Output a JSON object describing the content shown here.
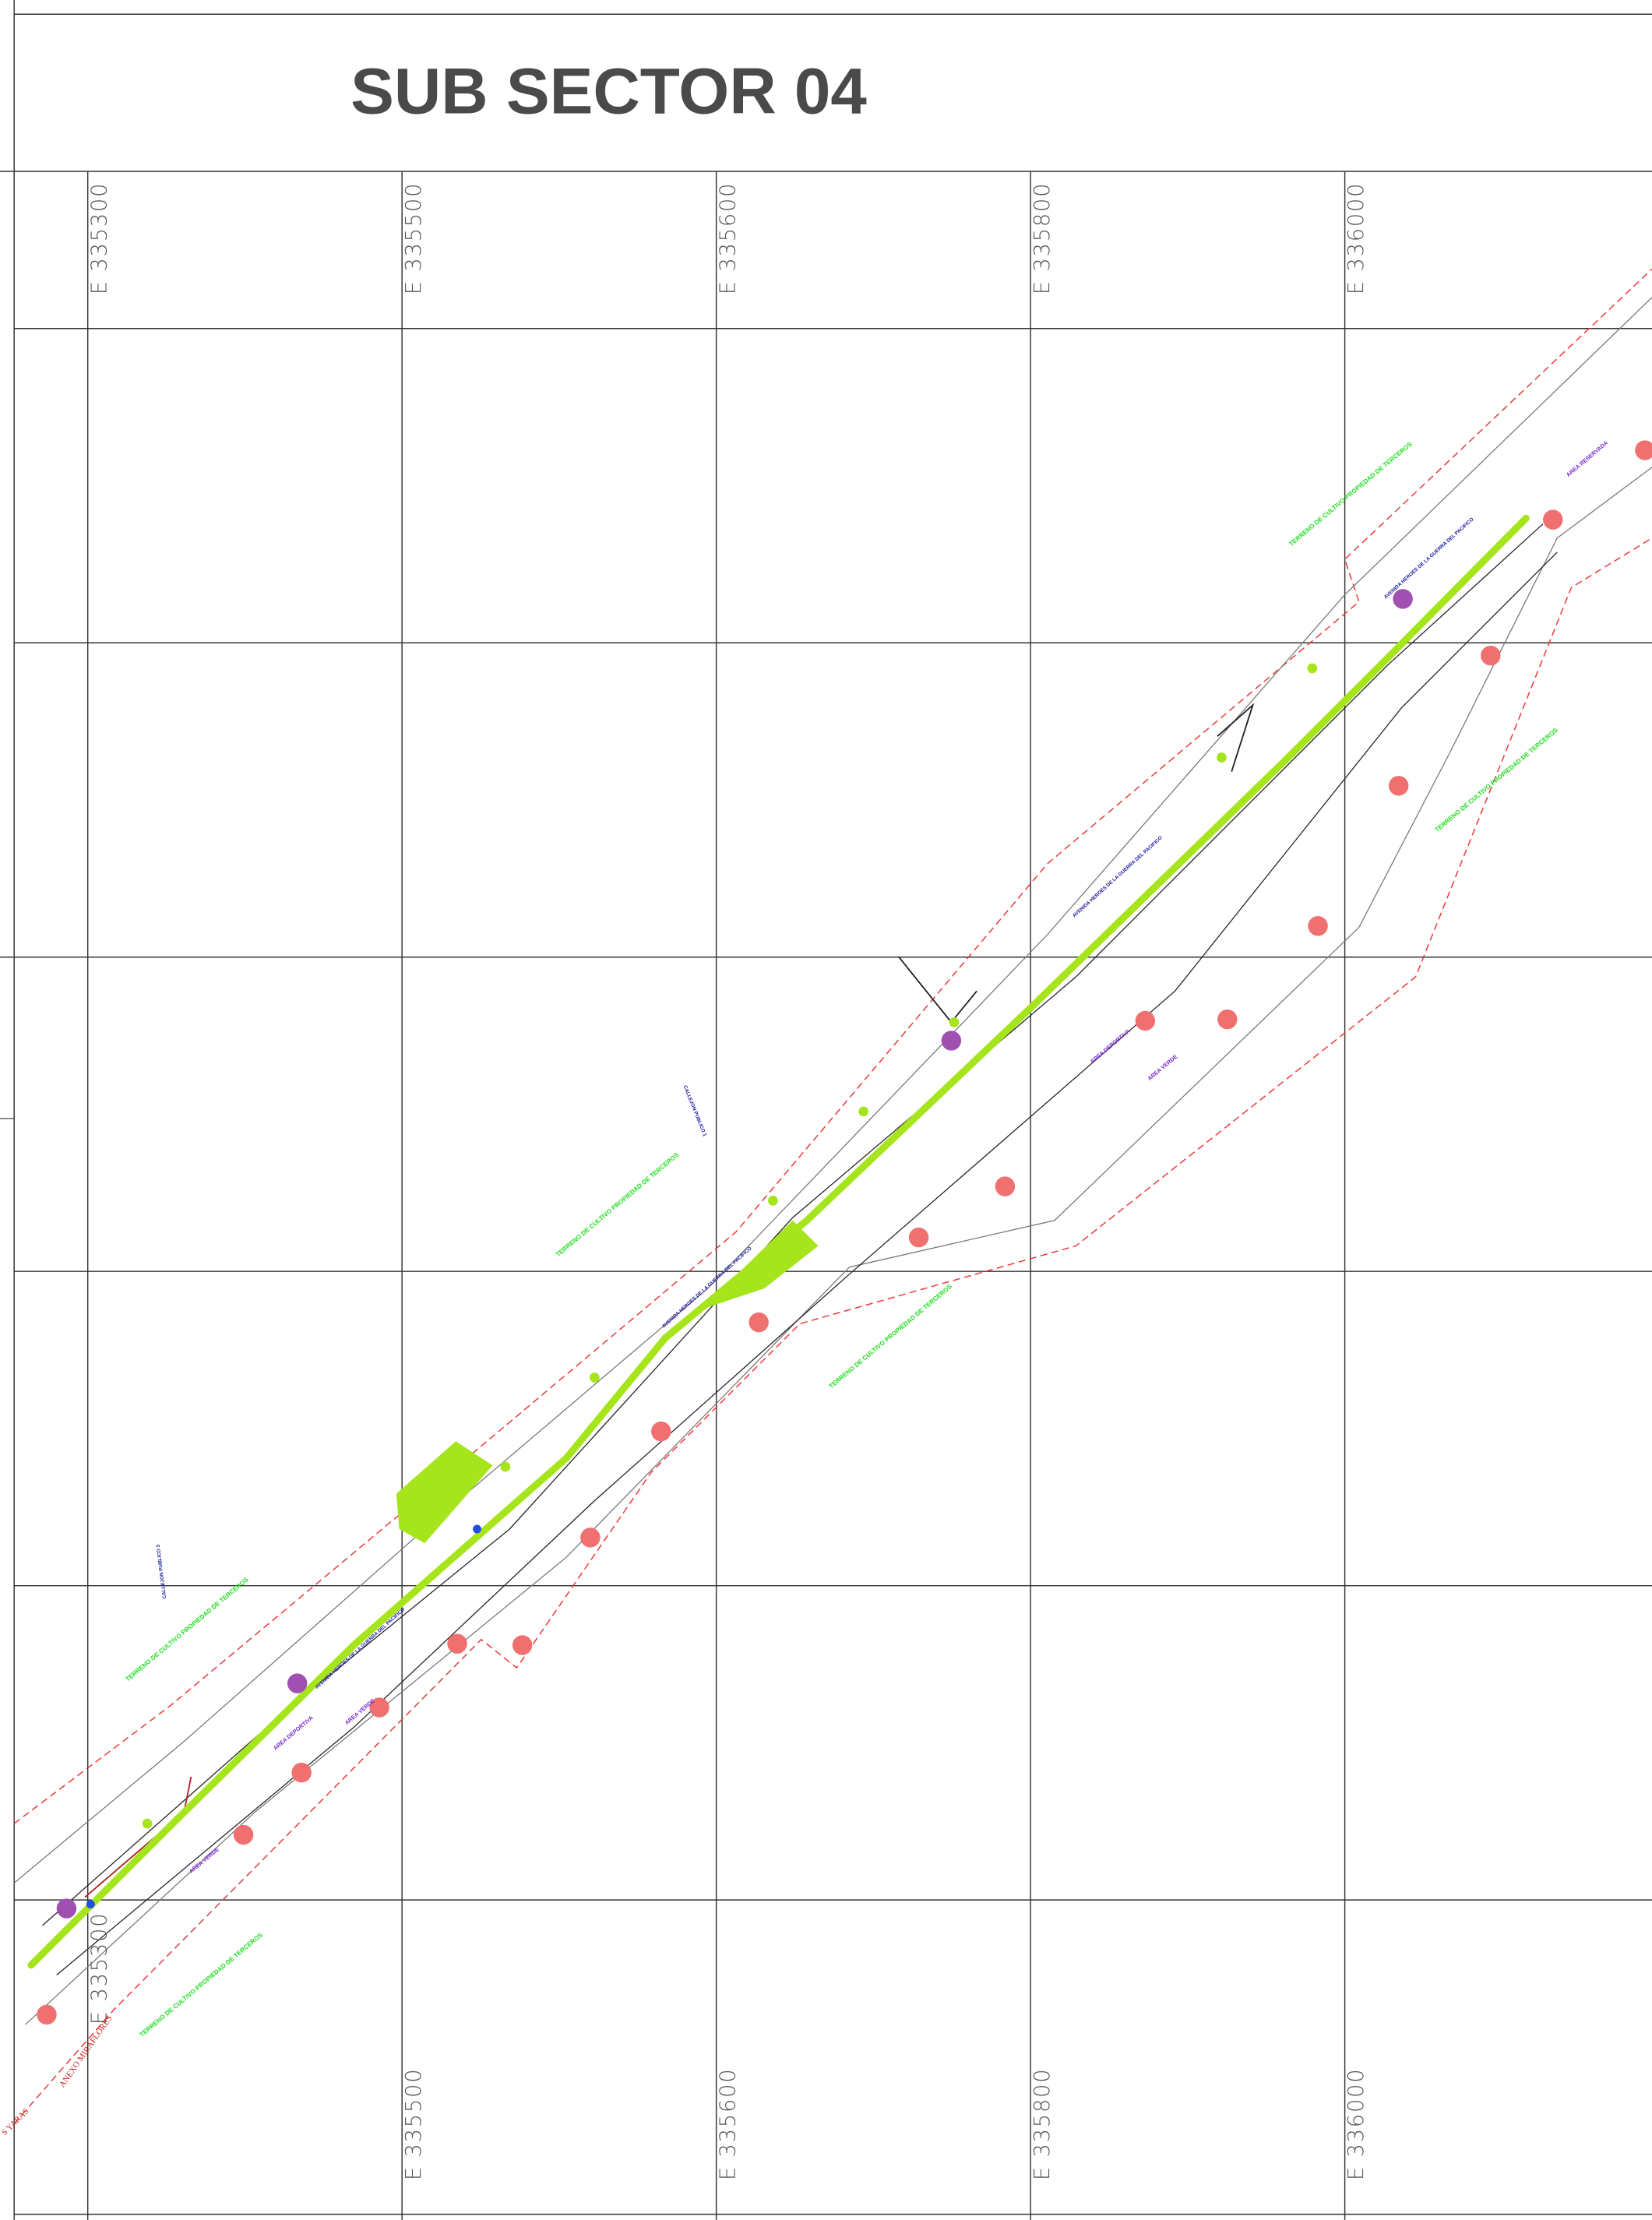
{
  "title": "SUB SECTOR 04",
  "grid_labels": {
    "top": [
      "E 335300",
      "E 335500",
      "E 335600",
      "E 335800",
      "E 336000"
    ],
    "bottom": [
      "E 335300",
      "E 335500",
      "E 335600",
      "E 335800",
      "E 336000"
    ]
  },
  "streets": [
    "CALLEJON PUBLICO 3",
    "CALLEJON PUBLICO 1",
    "ANEXO MIRAFLORES",
    "S YARAS"
  ],
  "road_labels": [
    "AVENIDA HEROES DE LA GUERRA DEL PACIFICO",
    "AVENIDA HEROES DE LA GUERRA DEL PACIFICO",
    "AVENIDA HEROES DE LA GUERRA DEL PACIFICO",
    "AVENIDA HEROES DE LA GUERRA DEL PACIFICO"
  ],
  "land_labels": [
    "TERRENO DE CULTIVO PROPIEDAD DE TERCEROS",
    "TERRENO DE CULTIVO PROPIEDAD DE TERCEROS",
    "TERRENO DE CULTIVO PROPIEDAD DE TERCEROS",
    "TERRENO DE CULTIVO PROPIEDAD DE TERCEROS",
    "TERRENO DE CULTIVO PROPIEDAD DE TERCEROS",
    "TERRENO DE CULTIVO PROPIEDAD DE TERCEROS"
  ],
  "zone_labels": [
    "AREA DEPORTIVA",
    "AREA VERDE",
    "AREA VERDE",
    "AREA DEPORTIVA",
    "AREA VERDE",
    "AREA RESERVADA"
  ]
}
